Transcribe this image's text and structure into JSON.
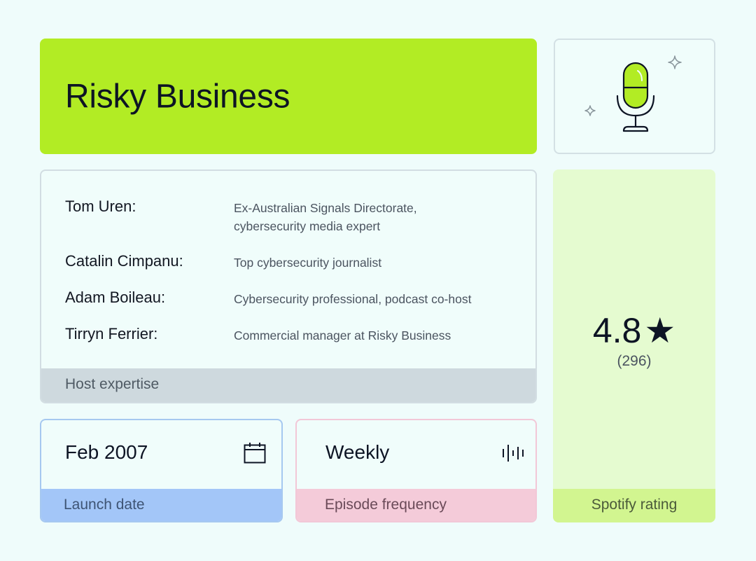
{
  "title": "Risky Business",
  "hosts": [
    {
      "name": "Tom Uren:",
      "desc": "Ex-Australian Signals Directorate, cybersecurity media expert"
    },
    {
      "name": "Catalin Cimpanu:",
      "desc": "Top cybersecurity journalist"
    },
    {
      "name": "Adam Boileau:",
      "desc": "Cybersecurity professional, podcast co-host"
    },
    {
      "name": "Tirryn Ferrier:",
      "desc": "Commercial manager at Risky Business"
    }
  ],
  "hosts_footer": "Host expertise",
  "rating": {
    "value": "4.8",
    "star": "★",
    "count": "(296)",
    "label": "Spotify rating"
  },
  "launch": {
    "value": "Feb 2007",
    "label": "Launch date",
    "icon": "calendar-icon"
  },
  "frequency": {
    "value": "Weekly",
    "label": "Episode frequency",
    "icon": "audio-wave-icon"
  },
  "colors": {
    "title_bg": "#b2ec24",
    "rating_bg": "#e5fbd0",
    "rating_footer": "#d2f590",
    "launch_footer": "#a3c6f8",
    "frequency_footer": "#f4cbd9",
    "hosts_footer": "#ced9de"
  },
  "mic_icon": "microphone-icon"
}
